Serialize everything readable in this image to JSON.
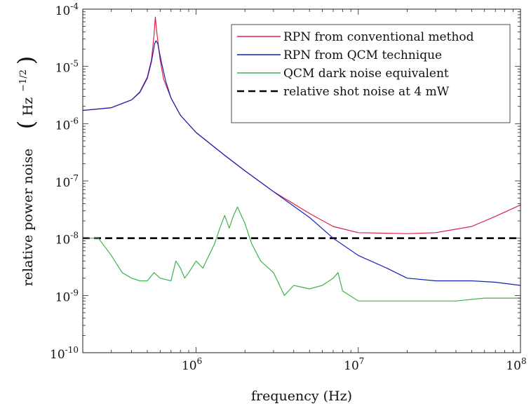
{
  "chart_data": {
    "type": "line",
    "xscale": "log",
    "yscale": "log",
    "xlim": [
      200000,
      100000000
    ],
    "ylim": [
      1e-10,
      0.0001
    ],
    "xlabel": "frequency (Hz)",
    "ylabel": "relative power noise",
    "ylabel_unit": "Hz",
    "ylabel_unit_exp": "−1/2",
    "x_ticks": [
      {
        "value": 1000000,
        "base": "10",
        "exp": "6"
      },
      {
        "value": 10000000,
        "base": "10",
        "exp": "7"
      },
      {
        "value": 100000000,
        "base": "10",
        "exp": "8"
      }
    ],
    "y_ticks": [
      {
        "value": 1e-10,
        "base": "10",
        "exp": "-10"
      },
      {
        "value": 1e-09,
        "base": "10",
        "exp": "-9"
      },
      {
        "value": 1e-08,
        "base": "10",
        "exp": "-8"
      },
      {
        "value": 1e-07,
        "base": "10",
        "exp": "-7"
      },
      {
        "value": 1e-06,
        "base": "10",
        "exp": "-6"
      },
      {
        "value": 1e-05,
        "base": "10",
        "exp": "-5"
      },
      {
        "value": 0.0001,
        "base": "10",
        "exp": "-4"
      }
    ],
    "legend_position": "top-right",
    "series": [
      {
        "name": "RPN from conventional method",
        "color": "#e0204a",
        "dash": "solid",
        "points": [
          [
            200000,
            1.7e-06
          ],
          [
            300000,
            1.9e-06
          ],
          [
            400000,
            2.6e-06
          ],
          [
            450000,
            3.6e-06
          ],
          [
            500000,
            6.5e-06
          ],
          [
            530000,
            1.3e-05
          ],
          [
            550000,
            3.5e-05
          ],
          [
            560000,
            7.3e-05
          ],
          [
            575000,
            3.5e-05
          ],
          [
            600000,
            1.3e-05
          ],
          [
            630000,
            6e-06
          ],
          [
            700000,
            2.8e-06
          ],
          [
            800000,
            1.4e-06
          ],
          [
            1000000,
            7e-07
          ],
          [
            1500000,
            2.8e-07
          ],
          [
            2000000,
            1.5e-07
          ],
          [
            3000000,
            6.5e-08
          ],
          [
            5000000,
            2.7e-08
          ],
          [
            7000000,
            1.6e-08
          ],
          [
            10000000,
            1.25e-08
          ],
          [
            20000000,
            1.2e-08
          ],
          [
            30000000,
            1.25e-08
          ],
          [
            50000000,
            1.6e-08
          ],
          [
            70000000,
            2.4e-08
          ],
          [
            100000000,
            3.8e-08
          ]
        ]
      },
      {
        "name": "RPN from QCM technique",
        "color": "#1420b8",
        "dash": "solid",
        "points": [
          [
            200000,
            1.7e-06
          ],
          [
            300000,
            1.9e-06
          ],
          [
            400000,
            2.6e-06
          ],
          [
            450000,
            3.5e-06
          ],
          [
            500000,
            6.2e-06
          ],
          [
            530000,
            1.2e-05
          ],
          [
            555000,
            2.5e-05
          ],
          [
            565000,
            2.8e-05
          ],
          [
            580000,
            2.5e-05
          ],
          [
            610000,
            1.2e-05
          ],
          [
            650000,
            5.5e-06
          ],
          [
            700000,
            2.8e-06
          ],
          [
            800000,
            1.4e-06
          ],
          [
            1000000,
            7e-07
          ],
          [
            1500000,
            2.8e-07
          ],
          [
            2000000,
            1.5e-07
          ],
          [
            3000000,
            6.5e-08
          ],
          [
            5000000,
            2.3e-08
          ],
          [
            7000000,
            1e-08
          ],
          [
            10000000,
            5e-09
          ],
          [
            15000000,
            3e-09
          ],
          [
            20000000,
            2e-09
          ],
          [
            30000000,
            1.8e-09
          ],
          [
            50000000,
            1.8e-09
          ],
          [
            70000000,
            1.7e-09
          ],
          [
            100000000,
            1.5e-09
          ]
        ]
      },
      {
        "name": "QCM dark noise equivalent",
        "color": "#3cb44a",
        "dash": "solid",
        "points": [
          [
            200000,
            1e-08
          ],
          [
            250000,
            1e-08
          ],
          [
            300000,
            5e-09
          ],
          [
            350000,
            2.5e-09
          ],
          [
            400000,
            2e-09
          ],
          [
            450000,
            1.8e-09
          ],
          [
            500000,
            1.8e-09
          ],
          [
            550000,
            2.5e-09
          ],
          [
            600000,
            2e-09
          ],
          [
            700000,
            1.8e-09
          ],
          [
            750000,
            4e-09
          ],
          [
            800000,
            3e-09
          ],
          [
            850000,
            2e-09
          ],
          [
            900000,
            2.5e-09
          ],
          [
            1000000,
            4e-09
          ],
          [
            1100000,
            3e-09
          ],
          [
            1200000,
            5e-09
          ],
          [
            1300000,
            8e-09
          ],
          [
            1400000,
            1.5e-08
          ],
          [
            1500000,
            2.5e-08
          ],
          [
            1600000,
            1.5e-08
          ],
          [
            1700000,
            2.5e-08
          ],
          [
            1800000,
            3.5e-08
          ],
          [
            2000000,
            1.8e-08
          ],
          [
            2200000,
            8e-09
          ],
          [
            2500000,
            4e-09
          ],
          [
            3000000,
            2.5e-09
          ],
          [
            3500000,
            1e-09
          ],
          [
            4000000,
            1.5e-09
          ],
          [
            5000000,
            1.3e-09
          ],
          [
            6000000,
            1.5e-09
          ],
          [
            7000000,
            2e-09
          ],
          [
            7500000,
            2.5e-09
          ],
          [
            8000000,
            1.2e-09
          ],
          [
            10000000,
            8e-10
          ],
          [
            20000000,
            8e-10
          ],
          [
            40000000,
            8e-10
          ],
          [
            60000000,
            9e-10
          ],
          [
            80000000,
            9e-10
          ],
          [
            100000000,
            9e-10
          ]
        ]
      },
      {
        "name": "relative shot noise at 4 mW",
        "color": "#000000",
        "dash": "dashed",
        "points": [
          [
            200000,
            1e-08
          ],
          [
            100000000,
            1e-08
          ]
        ]
      }
    ]
  }
}
